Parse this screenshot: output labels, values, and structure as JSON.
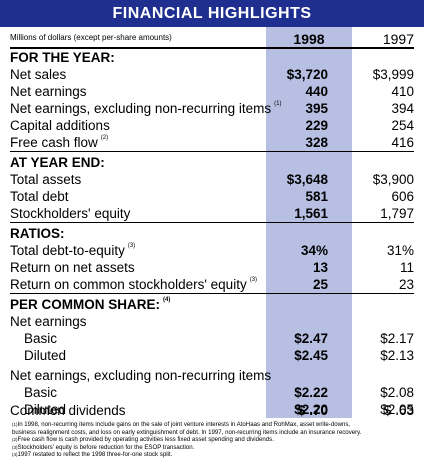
{
  "title": "FINANCIAL HIGHLIGHTS",
  "units": "Millions of dollars (except per-share amounts)",
  "years": [
    "1998",
    "1997"
  ],
  "rows": [
    {
      "label": "FOR THE YEAR:",
      "type": "section"
    },
    {
      "label": "Net sales",
      "v98": "$3,720",
      "v97": "$3,999"
    },
    {
      "label": "Net earnings",
      "v98": "440",
      "v97": "410"
    },
    {
      "label": "Net earnings, excluding non-recurring items",
      "note": "(1)",
      "v98": "395",
      "v97": "394"
    },
    {
      "label": "Capital additions",
      "v98": "229",
      "v97": "254"
    },
    {
      "label": "Free cash flow",
      "note": "(2)",
      "v98": "328",
      "v97": "416"
    },
    {
      "label": "AT YEAR END:",
      "type": "section"
    },
    {
      "label": "Total assets",
      "v98": "$3,648",
      "v97": "$3,900"
    },
    {
      "label": "Total debt",
      "v98": "581",
      "v97": "606"
    },
    {
      "label": "Stockholders' equity",
      "v98": "1,561",
      "v97": "1,797"
    },
    {
      "label": "RATIOS:",
      "type": "section"
    },
    {
      "label": "Total debt-to-equity",
      "note": "(3)",
      "v98": "34%",
      "v97": "31%"
    },
    {
      "label": "Return on net assets",
      "v98": "13",
      "v97": "11"
    },
    {
      "label": "Return on common stockholders' equity",
      "note": "(3)",
      "v98": "25",
      "v97": "23"
    },
    {
      "label": "PER COMMON SHARE:",
      "note": "(4)",
      "type": "section"
    },
    {
      "label": "Net earnings",
      "type": "subhead"
    },
    {
      "label": "Basic",
      "indent": true,
      "v98": "$2.47",
      "v97": "$2.17"
    },
    {
      "label": "Diluted",
      "indent": true,
      "v98": "$2.45",
      "v97": "$2.13"
    },
    {
      "label": "Net earnings, excluding non-recurring items",
      "type": "subhead"
    },
    {
      "label": "Basic",
      "indent": true,
      "v98": "$2.22",
      "v97": "$2.08"
    },
    {
      "label": "Diluted",
      "indent": true,
      "v98": "$2.20",
      "v97": "$2.05"
    },
    {
      "label": "Common dividends",
      "v98": "$ .70",
      "v97": "$ .63"
    }
  ],
  "footnotes": [
    {
      "mark": "(1)",
      "lines": [
        "In 1998, non-recurring items include gains on the sale of joint venture interests in AtoHaas and RohMax, asset write-downs,",
        "business realignment costs, and loss on early extinguishment of debt. In 1997, non-recurring items include an insurance recovery."
      ]
    },
    {
      "mark": "(2)",
      "lines": [
        "Free cash flow is cash provided by operating activities less fixed asset spending and dividends."
      ]
    },
    {
      "mark": "(3)",
      "lines": [
        "Stockholders' equity is before reduction for the ESOP transaction."
      ]
    },
    {
      "mark": "(4)",
      "lines": [
        "1997 restated to reflect the 1998 three-for-one stock split."
      ]
    }
  ]
}
